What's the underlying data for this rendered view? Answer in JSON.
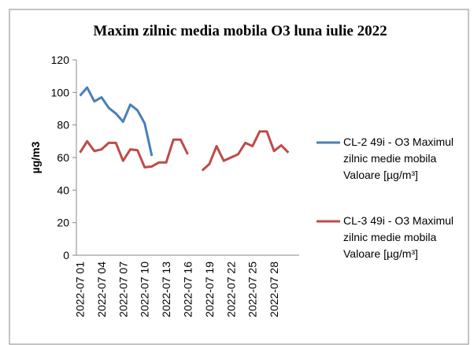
{
  "chart_data": {
    "type": "line",
    "title": "Maxim zilnic media mobila O3 luna iulie 2022",
    "y_label": "µg/m3",
    "categories": [
      "2022-07 01",
      null,
      null,
      "2022-07 04",
      null,
      null,
      "2022-07 07",
      null,
      null,
      "2022-07 10",
      null,
      null,
      "2022-07 13",
      null,
      null,
      "2022-07 16",
      null,
      null,
      "2022-07 19",
      null,
      null,
      "2022-07 22",
      null,
      null,
      "2022-07 25",
      null,
      null,
      "2022-07 28",
      null,
      null,
      null
    ],
    "series": [
      {
        "name": "CL-2 49i - O3 Maximul zilnic medie mobila Valoare [µg/m³]",
        "color": "#4a7ebb",
        "values": [
          98,
          103,
          94.5,
          97,
          90.5,
          87,
          82,
          92.5,
          89,
          81,
          61,
          null,
          null,
          null,
          null,
          null,
          null,
          null,
          null,
          null,
          null,
          null,
          null,
          null,
          null,
          null,
          null,
          null,
          null,
          null,
          null
        ]
      },
      {
        "name": "CL-3 49i - O3 Maximul zilnic medie mobila Valoare [µg/m³]",
        "color": "#be4b48",
        "values": [
          63,
          70,
          64,
          65,
          69,
          69,
          58,
          65,
          64.5,
          54,
          54.5,
          57,
          57,
          71,
          71,
          62,
          null,
          52,
          56,
          67,
          58,
          60,
          62,
          69,
          67,
          76,
          76,
          64,
          67.5,
          63,
          null
        ]
      }
    ],
    "ylim": [
      0,
      120
    ],
    "yticks": [
      0,
      20,
      40,
      60,
      80,
      100,
      120
    ],
    "grid": false,
    "legend": "right"
  }
}
